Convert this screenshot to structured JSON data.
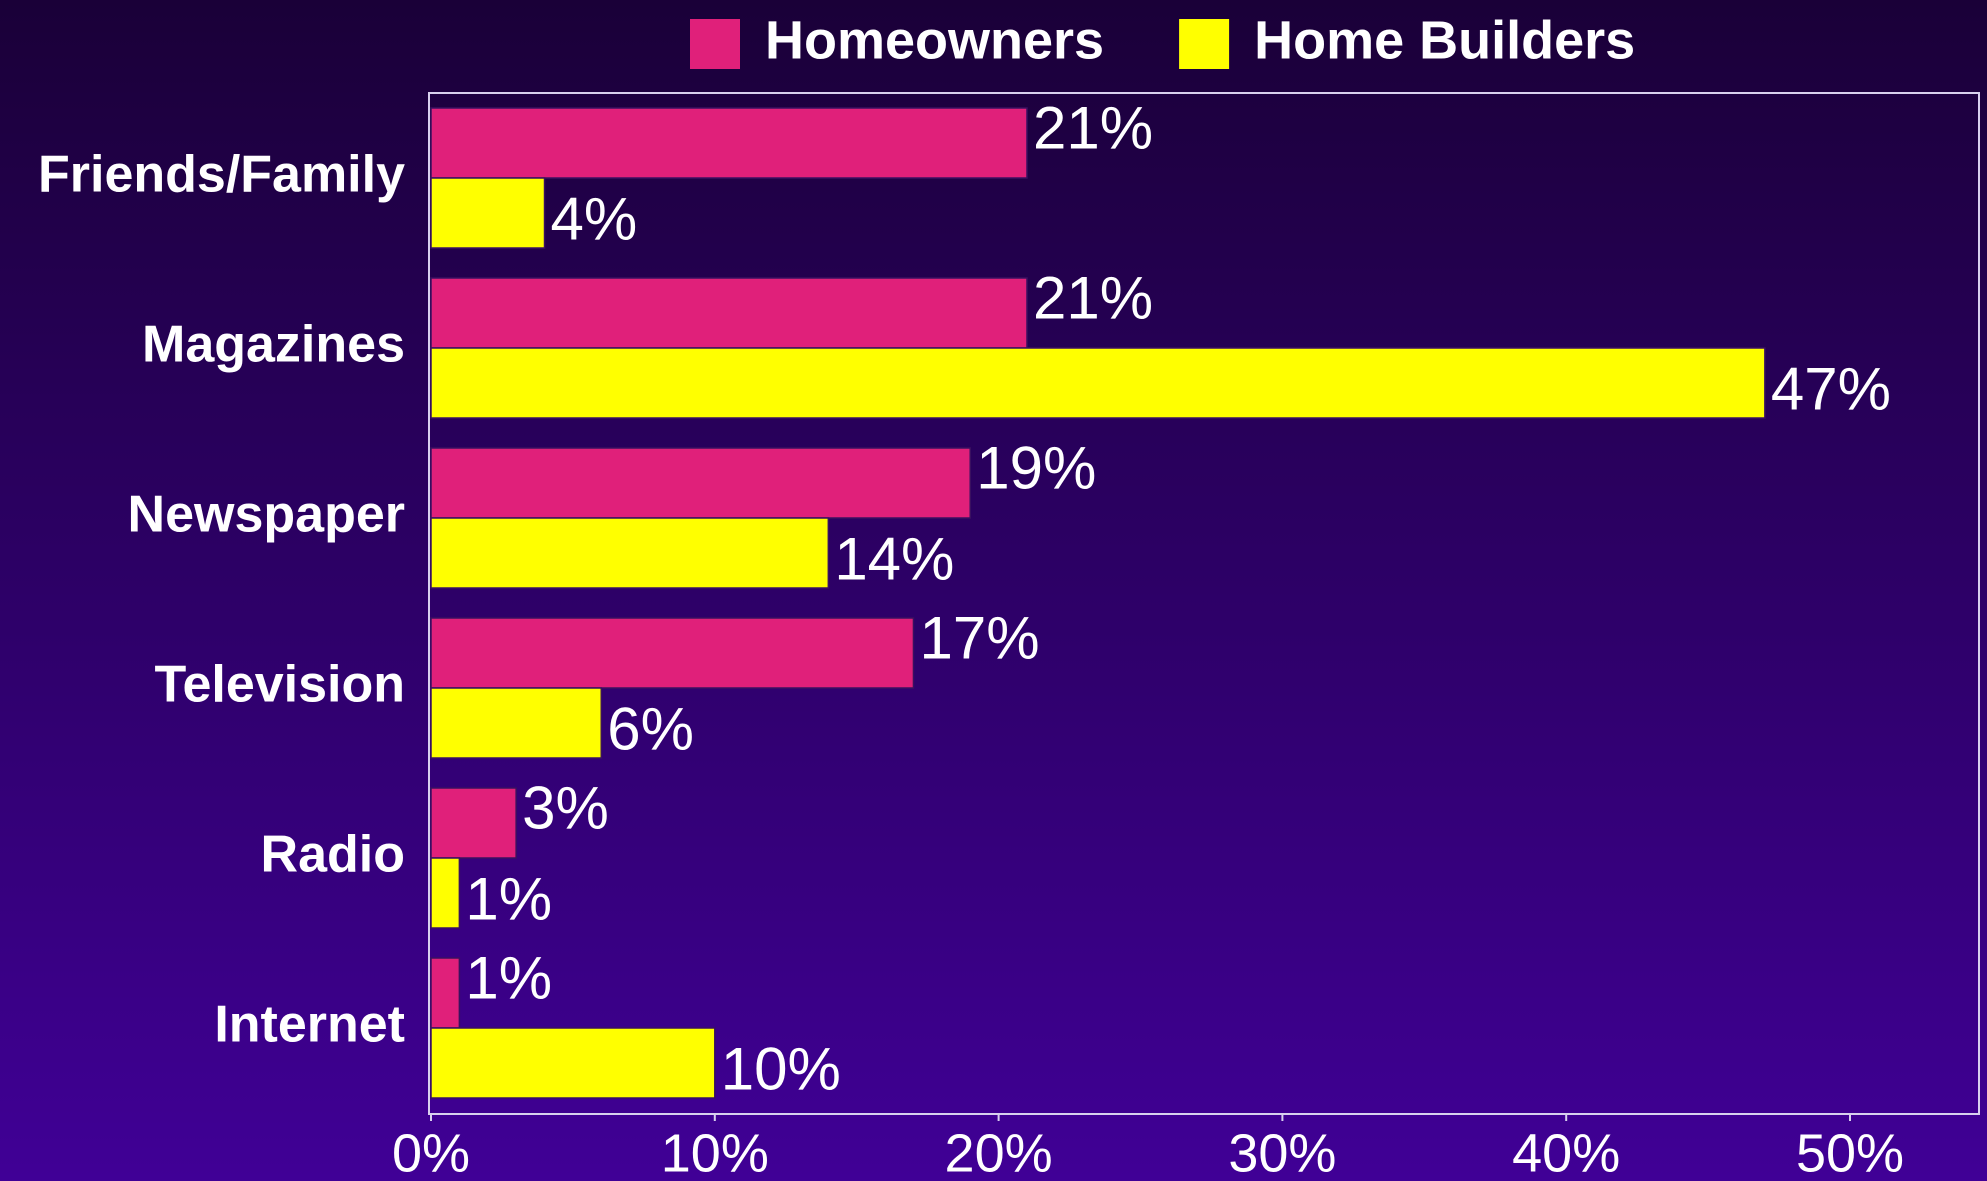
{
  "chart_data": {
    "type": "bar",
    "orientation": "horizontal",
    "categories": [
      "Friends/Family",
      "Magazines",
      "Newspaper",
      "Television",
      "Radio",
      "Internet"
    ],
    "series": [
      {
        "name": "Homeowners",
        "color": "#e0207a",
        "values": [
          21,
          21,
          19,
          17,
          3,
          1
        ],
        "value_labels": [
          "21%",
          "21%",
          "19%",
          "17%",
          "3%",
          "1%"
        ]
      },
      {
        "name": "Home Builders",
        "color": "#ffff00",
        "values": [
          4,
          47,
          14,
          6,
          1,
          10
        ],
        "value_labels": [
          "4%",
          "47%",
          "14%",
          "6%",
          "1%",
          "10%"
        ]
      }
    ],
    "xlim": [
      0,
      50
    ],
    "xticks": [
      {
        "value": 0,
        "label": "0%"
      },
      {
        "value": 10,
        "label": "10%"
      },
      {
        "value": 20,
        "label": "20%"
      },
      {
        "value": 30,
        "label": "30%"
      },
      {
        "value": 40,
        "label": "40%"
      },
      {
        "value": 50,
        "label": "50%"
      }
    ],
    "legend": "top"
  }
}
